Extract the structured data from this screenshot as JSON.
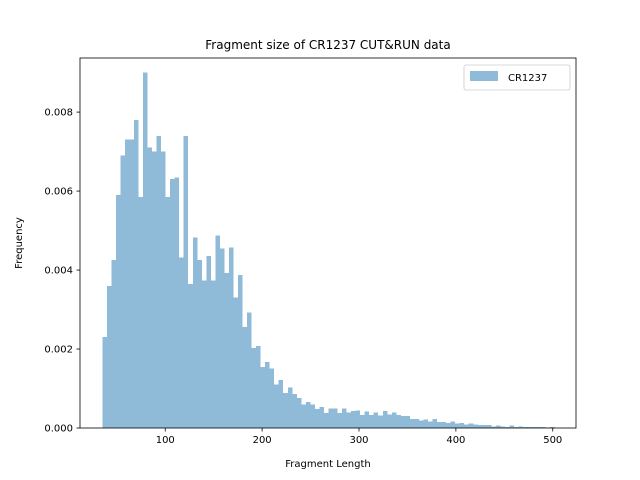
{
  "chart_data": {
    "type": "bar",
    "title": "Fragment size of CR1237 CUT&RUN data",
    "xlabel": "Fragment Length",
    "ylabel": "Frequency",
    "xlim": [
      12,
      524
    ],
    "ylim": [
      0,
      0.00937
    ],
    "xticks": [
      100,
      200,
      300,
      400,
      500
    ],
    "yticks": [
      0.0,
      0.002,
      0.004,
      0.006,
      0.008
    ],
    "ytick_labels": [
      "0.000",
      "0.002",
      "0.004",
      "0.006",
      "0.008"
    ],
    "bin_start": 35,
    "bin_width": 4.67,
    "color": "#1f77b4",
    "alpha": 0.5,
    "legend_position": "upper right",
    "series": [
      {
        "name": "CR1237",
        "values": [
          0.0023,
          0.0036,
          0.00425,
          0.0059,
          0.0069,
          0.0073,
          0.0073,
          0.0078,
          0.00585,
          0.009,
          0.0071,
          0.007,
          0.0074,
          0.007,
          0.00585,
          0.0063,
          0.00635,
          0.00432,
          0.0074,
          0.00365,
          0.00483,
          0.00425,
          0.00374,
          0.00435,
          0.00374,
          0.00487,
          0.00454,
          0.00392,
          0.00457,
          0.0033,
          0.00387,
          0.00256,
          0.00292,
          0.00203,
          0.00208,
          0.00154,
          0.00167,
          0.00151,
          0.0011,
          0.00122,
          0.00089,
          0.00103,
          0.00086,
          0.00076,
          0.00059,
          0.00066,
          0.00059,
          0.00048,
          0.00053,
          0.00038,
          0.00049,
          0.00049,
          0.00038,
          0.00049,
          0.00039,
          0.00043,
          0.00044,
          0.00033,
          0.00042,
          0.00033,
          0.00039,
          0.00032,
          0.00043,
          0.00034,
          0.00039,
          0.00033,
          0.00031,
          0.00031,
          0.00023,
          0.00023,
          0.00019,
          0.00021,
          0.00017,
          0.00023,
          0.00015,
          0.00015,
          0.00013,
          0.00017,
          0.00011,
          0.00013,
          9e-05,
          0.00011,
          9e-05,
          7e-05,
          7e-05,
          7e-05,
          4e-05,
          6e-05,
          4e-05,
          3e-05,
          6e-05,
          3e-05,
          4e-05,
          3e-05,
          2e-05,
          3e-05,
          2e-05,
          3e-05,
          1e-05,
          2e-05
        ]
      }
    ]
  }
}
